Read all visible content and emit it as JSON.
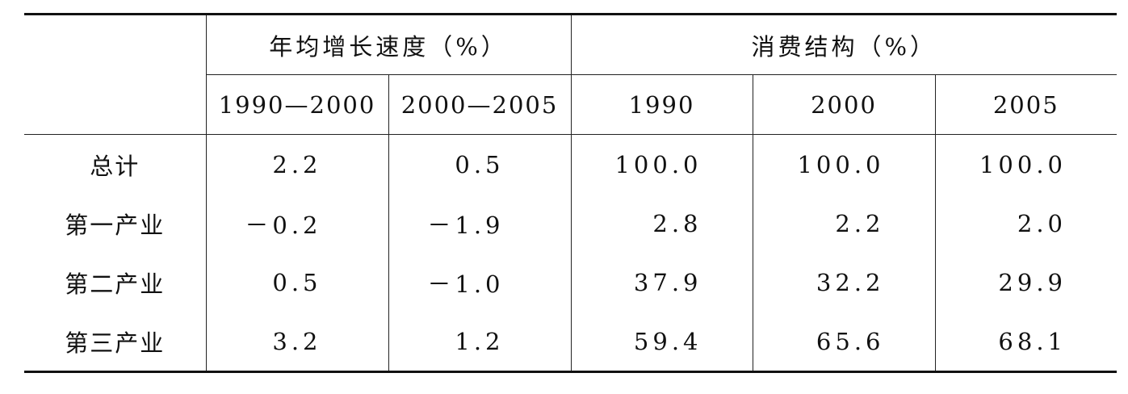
{
  "table": {
    "header": {
      "groups": [
        "年均增长速度（%）",
        "消费结构（%）"
      ],
      "years": [
        "1990—2000",
        "2000—2005",
        "1990",
        "2000",
        "2005"
      ]
    },
    "rows": [
      [
        "总计",
        "2.2",
        "0.5",
        "100.0",
        "100.0",
        "100.0"
      ],
      [
        "第一产业",
        "－0.2",
        "－1.9",
        "2.8",
        "2.2",
        "2.0"
      ],
      [
        "第二产业",
        "0.5",
        "－1.0",
        "37.9",
        "32.2",
        "29.9"
      ],
      [
        "第三产业",
        "3.2",
        "1.2",
        "59.4",
        "65.6",
        "68.1"
      ]
    ]
  }
}
